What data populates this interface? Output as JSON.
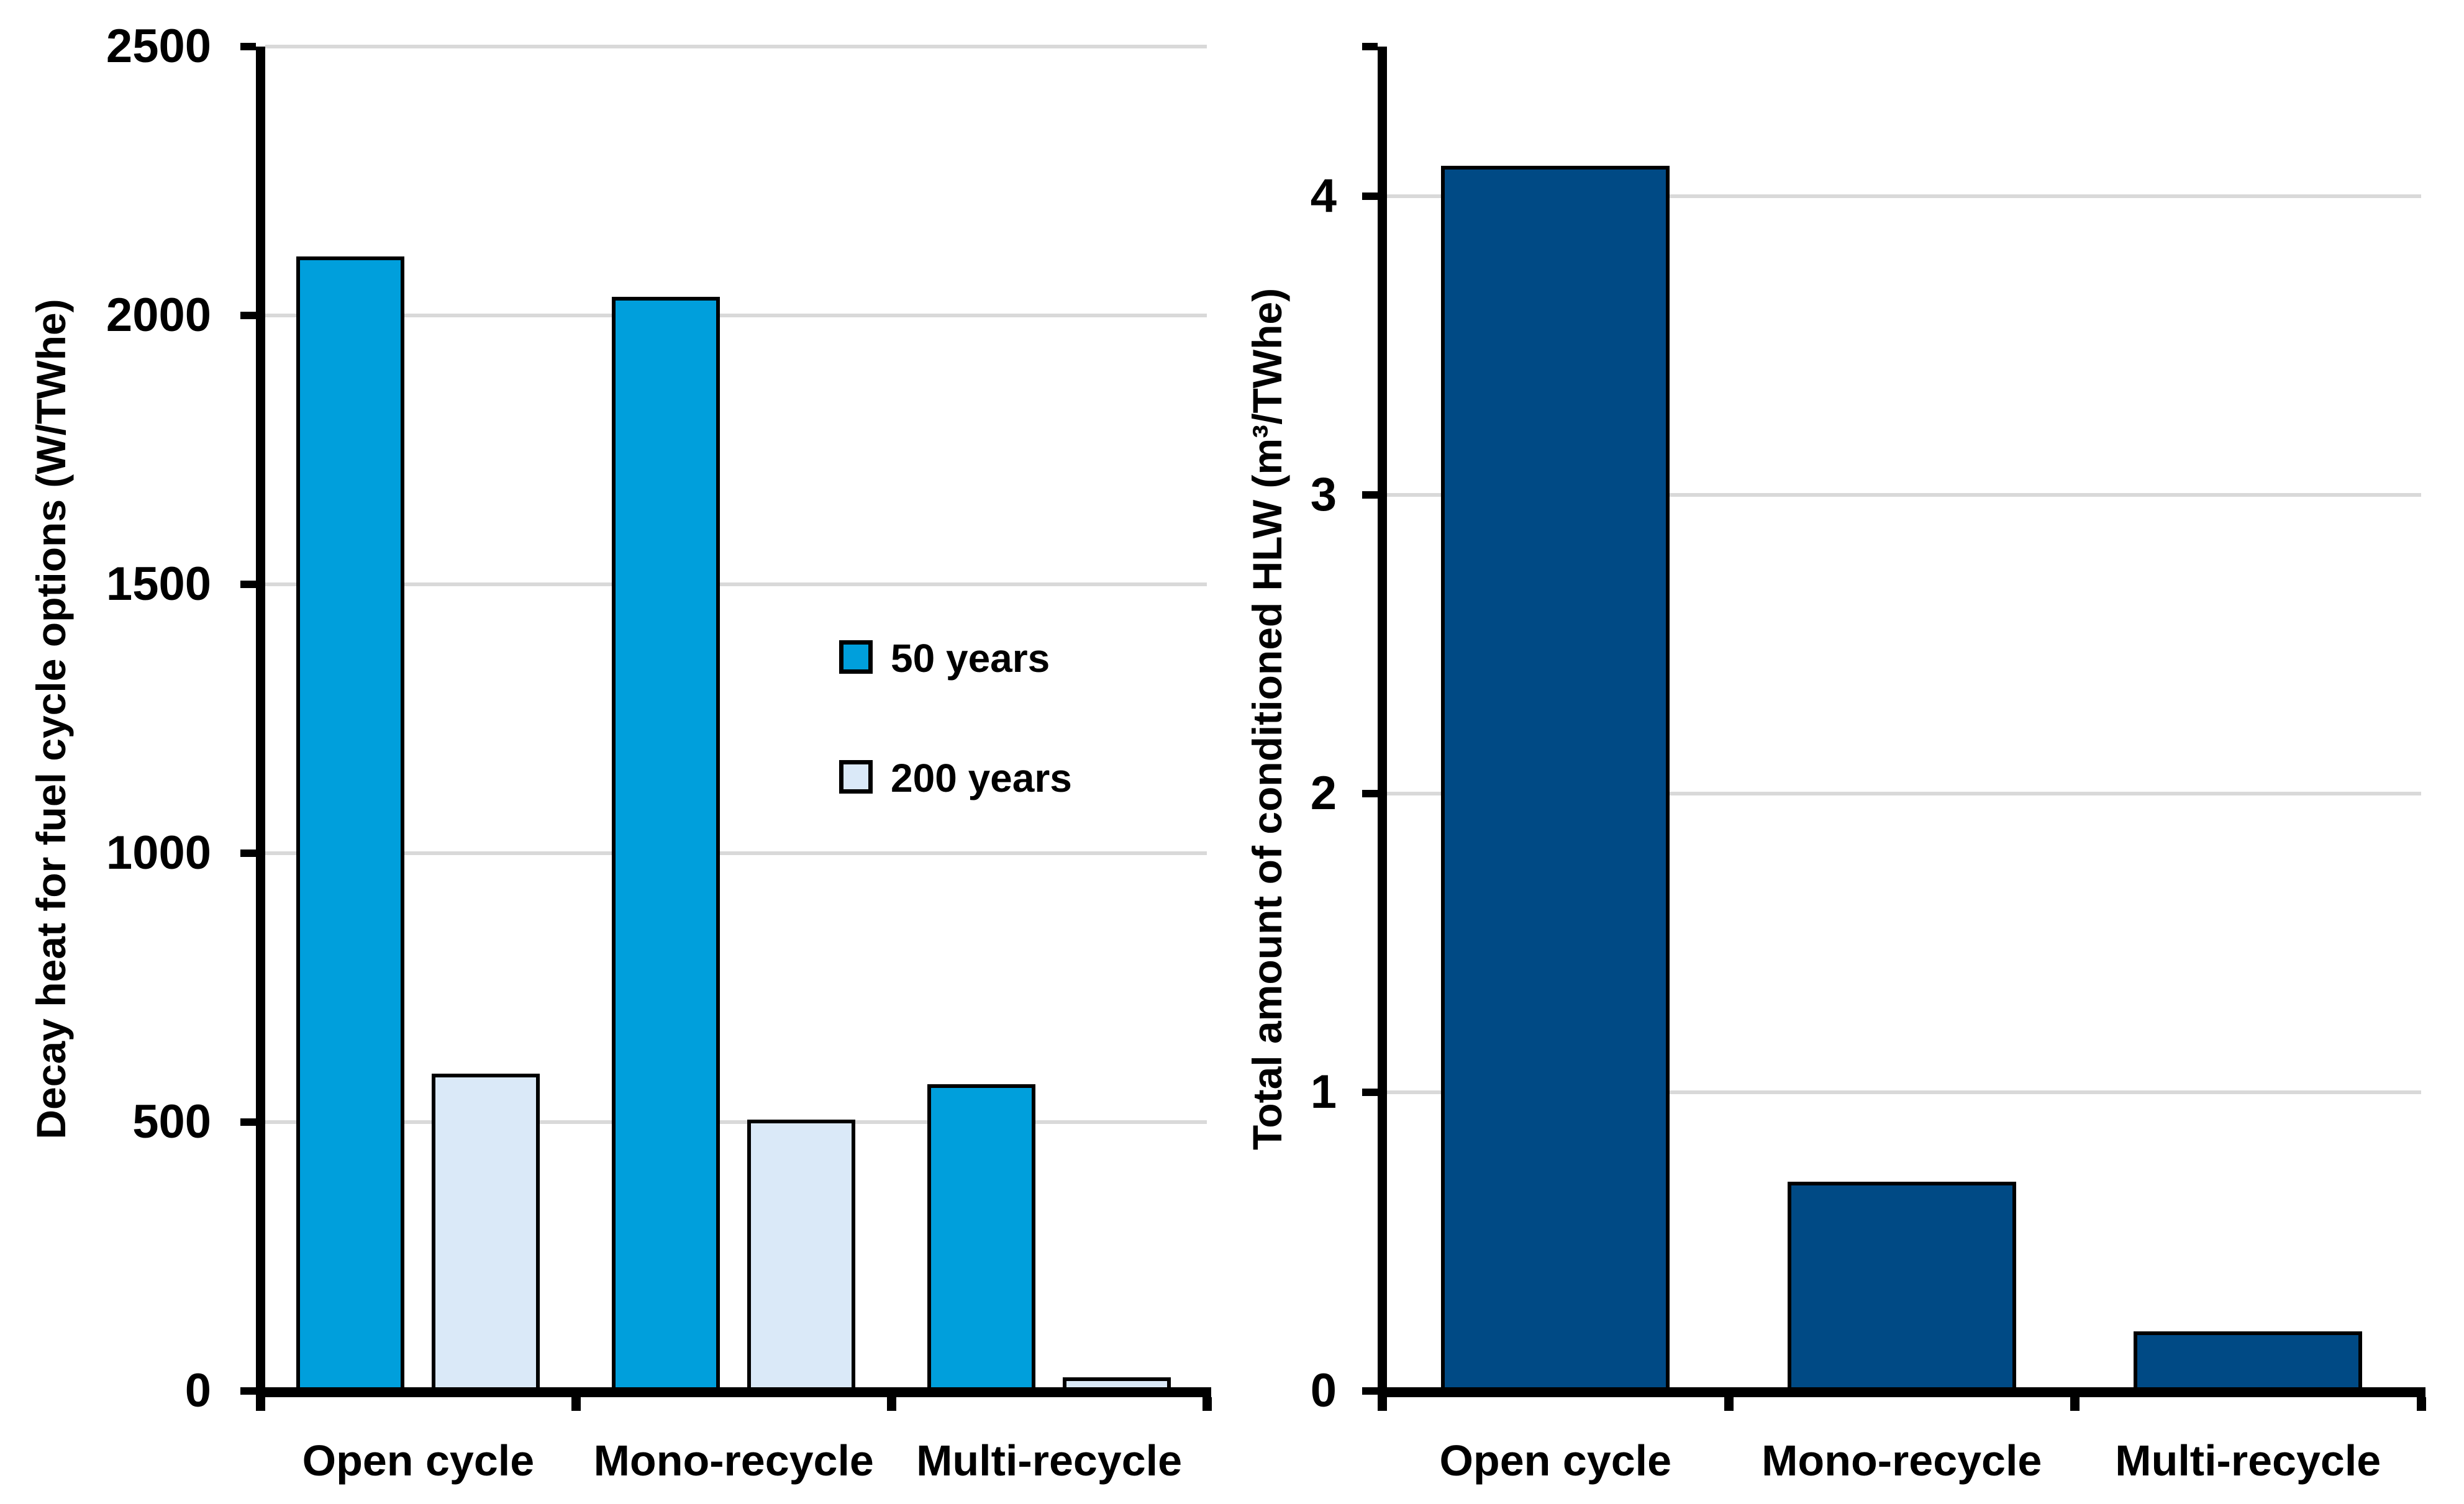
{
  "figure": {
    "background": "#ffffff",
    "text_color": "#000000",
    "gridline_color": "#D9D9D9",
    "axis_color": "#000000"
  },
  "chart_data": [
    {
      "type": "bar",
      "title": "",
      "ylabel": "Decay heat for fuel cycle options (W/TWhe)",
      "xlabel": "",
      "categories": [
        "Open cycle",
        "Mono-recycle",
        "Multi-recycle"
      ],
      "series": [
        {
          "name": "50 years",
          "color": "#009FDC",
          "values": [
            2110,
            2035,
            570
          ]
        },
        {
          "name": "200 years",
          "color": "#DAE9F8",
          "values": [
            590,
            505,
            25
          ]
        }
      ],
      "ylim": [
        0,
        2500
      ],
      "yticks": [
        0,
        500,
        1000,
        1500,
        2000,
        2500
      ],
      "grid": true,
      "legend_position": "inside-right",
      "bar_border_color": "#000000"
    },
    {
      "type": "bar",
      "title": "",
      "ylabel": "Total amount of conditioned HLW (m³/TWhe)",
      "xlabel": "",
      "categories": [
        "Open cycle",
        "Mono-recycle",
        "Multi-recycle"
      ],
      "series": [
        {
          "name": "",
          "color": "#004A85",
          "values": [
            4.1,
            0.7,
            0.2
          ]
        }
      ],
      "ylim": [
        0,
        4.5
      ],
      "yticks": [
        0,
        1,
        2,
        3,
        4
      ],
      "grid": true,
      "legend_position": "none",
      "bar_border_color": "#000000"
    }
  ]
}
